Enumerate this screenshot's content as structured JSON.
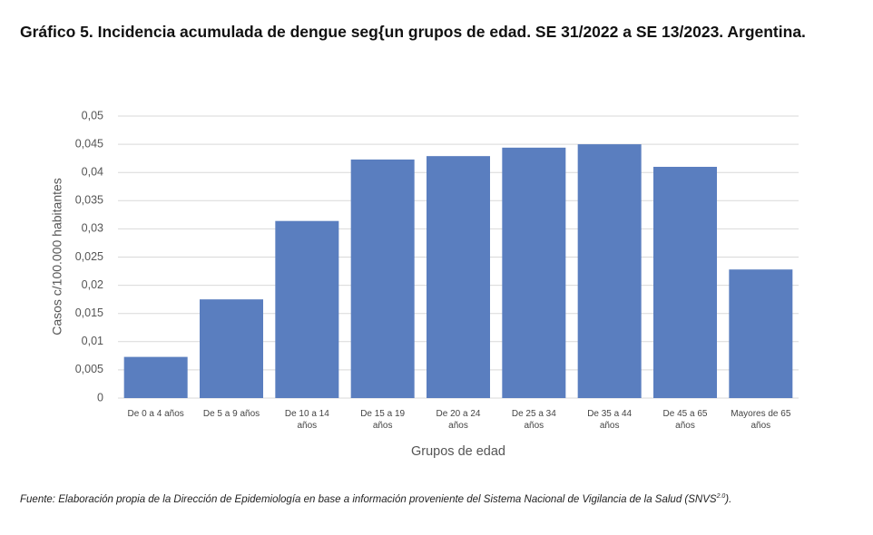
{
  "chart_data": {
    "type": "bar",
    "title": "Gráfico 5. Incidencia acumulada de dengue seg{un grupos de edad. SE 31/2022 a SE 13/2023. Argentina.",
    "x_label": "Grupos de edad",
    "y_label": "Casos c/100.000 habitantes",
    "categories": [
      "De 0 a 4 años",
      "De 5 a 9 años",
      "De 10 a 14 años",
      "De 15 a 19 años",
      "De 20 a 24 años",
      "De 25 a 34 años",
      "De 35 a 44 años",
      "De 45 a 65 años",
      "Mayores de 65 años"
    ],
    "values": [
      0.0073,
      0.0175,
      0.0314,
      0.0423,
      0.0429,
      0.0444,
      0.045,
      0.041,
      0.0228
    ],
    "color": "#5a7ebf",
    "ylim": [
      0,
      0.05
    ],
    "yticks": [
      0,
      {
        "value": 0.005,
        "label": "0,005"
      },
      {
        "value": 0.01,
        "label": "0,01"
      },
      {
        "value": 0.015,
        "label": "0,015"
      },
      {
        "value": 0.02,
        "label": "0,02"
      },
      {
        "value": 0.025,
        "label": "0,025"
      },
      {
        "value": 0.03,
        "label": "0,03"
      },
      {
        "value": 0.035,
        "label": "0,035"
      },
      {
        "value": 0.04,
        "label": "0,04"
      },
      {
        "value": 0.045,
        "label": "0,045"
      },
      {
        "value": 0.05,
        "label": "0,05"
      }
    ],
    "grid": true,
    "source": "Fuente: Elaboración propia de la Dirección de Epidemiología en base a información proveniente del Sistema Nacional de Vigilancia de la Salud (SNVS",
    "source_sup": "2.0",
    "source_end": ")."
  }
}
